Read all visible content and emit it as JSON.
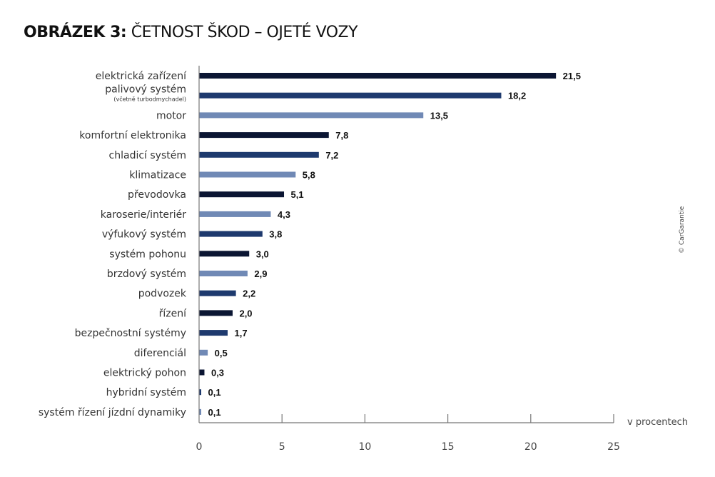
{
  "title": {
    "bold": "OBRÁZEK 3:",
    "light": "ČETNOST ŠKOD – OJETÉ VOZY"
  },
  "copyright": "© CarGarantie",
  "colors": {
    "dark": "#0b1633",
    "mid": "#1e3a6e",
    "light": "#7089b5"
  },
  "chart_data": {
    "type": "bar",
    "orientation": "horizontal",
    "title": "OBRÁZEK 3: ČETNOST ŠKOD – OJETÉ VOZY",
    "xlabel": "v procentech",
    "ylabel": "",
    "xlim": [
      0,
      25
    ],
    "xticks": [
      0,
      5,
      10,
      15,
      20,
      25
    ],
    "xtick_labels": [
      "0",
      "5",
      "10",
      "15",
      "20",
      "25"
    ],
    "grid": false,
    "categories": [
      "elektrická zařízení",
      "palivový systém",
      "motor",
      "komfortní elektronika",
      "chladicí systém",
      "klimatizace",
      "převodovka",
      "karoserie/interiér",
      "výfukový systém",
      "systém pohonu",
      "brzdový systém",
      "podvozek",
      "řízení",
      "bezpečnostní systémy",
      "diferenciál",
      "elektrický pohon",
      "hybridní systém",
      "systém řízení jízdní dynamiky"
    ],
    "category_sublabels": [
      "",
      "(včetně turbodmychadel)",
      "",
      "",
      "",
      "",
      "",
      "",
      "",
      "",
      "",
      "",
      "",
      "",
      "",
      "",
      "",
      ""
    ],
    "values": [
      21.5,
      18.2,
      13.5,
      7.8,
      7.2,
      5.8,
      5.1,
      4.3,
      3.8,
      3.0,
      2.9,
      2.2,
      2.0,
      1.7,
      0.5,
      0.3,
      0.1,
      0.1
    ],
    "value_labels": [
      "21,5",
      "18,2",
      "13,5",
      "7,8",
      "7,2",
      "5,8",
      "5,1",
      "4,3",
      "3,8",
      "3,0",
      "2,9",
      "2,2",
      "2,0",
      "1,7",
      "0,5",
      "0,3",
      "0,1",
      "0,1"
    ],
    "bar_colors": [
      "dark",
      "mid",
      "light",
      "dark",
      "mid",
      "light",
      "dark",
      "light",
      "mid",
      "dark",
      "light",
      "mid",
      "dark",
      "mid",
      "light",
      "dark",
      "mid",
      "light"
    ]
  }
}
